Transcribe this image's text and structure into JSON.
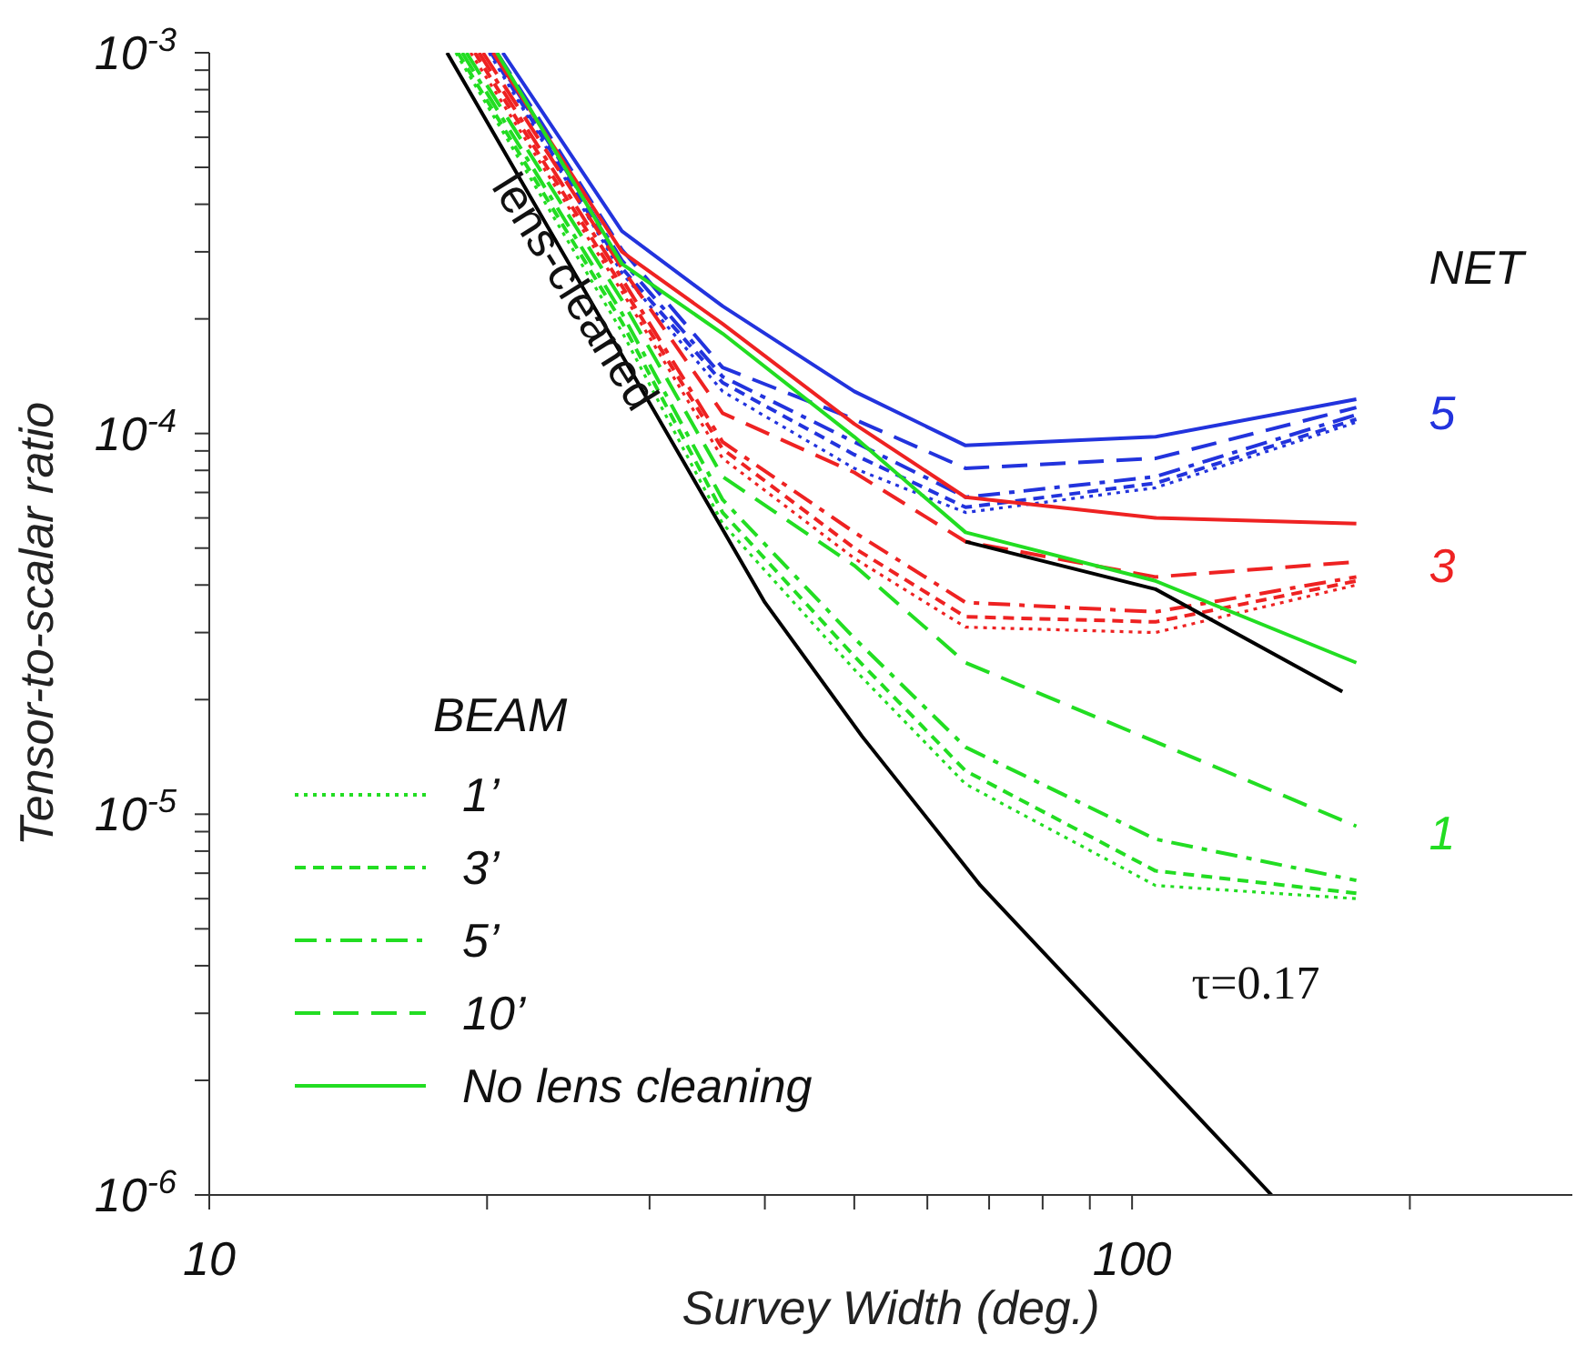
{
  "chart_data": {
    "type": "line",
    "xlabel": "Survey Width (deg.)",
    "ylabel": "Tensor-to-scalar ratio",
    "legend_title": "BEAM",
    "legend": "bottom left",
    "log": "xy",
    "grid": false,
    "marker": "none",
    "xlim": [
      10,
      300
    ],
    "ylim": [
      1e-06,
      0.001
    ],
    "xticks": [
      10,
      {
        "value": 20,
        "label": null
      },
      {
        "value": 30,
        "label": null
      },
      {
        "value": 40,
        "label": null
      },
      {
        "value": 50,
        "label": null
      },
      {
        "value": 60,
        "label": null
      },
      {
        "value": 70,
        "label": null
      },
      {
        "value": 80,
        "label": null
      },
      {
        "value": 90,
        "label": null
      },
      100,
      {
        "value": 200,
        "label": null
      }
    ],
    "yticks": [
      {
        "value": 1e-06,
        "label": "10$^{-6}$"
      },
      {
        "value": 2e-06,
        "label": null
      },
      {
        "value": 3e-06,
        "label": null
      },
      {
        "value": 4e-06,
        "label": null
      },
      {
        "value": 5e-06,
        "label": null
      },
      {
        "value": 6e-06,
        "label": null
      },
      {
        "value": 7e-06,
        "label": null
      },
      {
        "value": 8e-06,
        "label": null
      },
      {
        "value": 9e-06,
        "label": null
      },
      {
        "value": 1e-05,
        "label": "10$^{-5}$"
      },
      {
        "value": 2e-05,
        "label": null
      },
      {
        "value": 3e-05,
        "label": null
      },
      {
        "value": 4e-05,
        "label": null
      },
      {
        "value": 5e-05,
        "label": null
      },
      {
        "value": 6e-05,
        "label": null
      },
      {
        "value": 7e-05,
        "label": null
      },
      {
        "value": 8e-05,
        "label": null
      },
      {
        "value": 9e-05,
        "label": null
      },
      {
        "value": 0.0001,
        "label": "10$^{-4}$"
      },
      {
        "value": 0.0002,
        "label": null
      },
      {
        "value": 0.0003,
        "label": null
      },
      {
        "value": 0.0004,
        "label": null
      },
      {
        "value": 0.0005,
        "label": null
      },
      {
        "value": 0.0006,
        "label": null
      },
      {
        "value": 0.0007,
        "label": null
      },
      {
        "value": 0.0008,
        "label": null
      },
      {
        "value": 0.0009,
        "label": null
      },
      {
        "value": 0.001,
        "label": "10$^{-3}$"
      }
    ],
    "series": [
      {
        "color": "#2233dd",
        "line_style": "solid",
        "x": [
          20.8,
          28,
          36,
          50,
          66,
          106,
          175
        ],
        "values": [
          0.001,
          0.00034,
          0.000216,
          0.000129,
          9.3e-05,
          9.8e-05,
          0.000123
        ]
      },
      {
        "color": "#2233dd",
        "line_style": "longdash",
        "x": [
          20.5,
          28,
          36,
          50,
          66,
          106,
          175
        ],
        "values": [
          0.001,
          0.000304,
          0.000149,
          0.000109,
          8.1e-05,
          8.6e-05,
          0.000117
        ]
      },
      {
        "color": "#2233dd",
        "line_style": "dashdot",
        "x": [
          20.3,
          28,
          36,
          50,
          66,
          106,
          175
        ],
        "values": [
          0.001,
          0.000285,
          0.000141,
          9.5e-05,
          6.8e-05,
          7.7e-05,
          0.000112
        ]
      },
      {
        "color": "#2233dd",
        "line_style": "dashed",
        "x": [
          20.2,
          28,
          36,
          50,
          66,
          106,
          175
        ],
        "values": [
          0.001,
          0.000272,
          0.000136,
          8.8e-05,
          6.4e-05,
          7.4e-05,
          0.000109
        ]
      },
      {
        "color": "#2233dd",
        "line_style": "dotted",
        "x": [
          20.1,
          28,
          36,
          50,
          66,
          106,
          175
        ],
        "values": [
          0.001,
          0.000264,
          0.000129,
          8.1e-05,
          6.2e-05,
          7.2e-05,
          0.000107
        ]
      },
      {
        "color": "#ee2222",
        "line_style": "solid",
        "x": [
          20.3,
          28,
          36,
          50,
          66,
          106,
          175
        ],
        "values": [
          0.001,
          0.0003,
          0.000194,
          0.000106,
          6.8e-05,
          6e-05,
          5.8e-05
        ]
      },
      {
        "color": "#ee2222",
        "line_style": "longdash",
        "x": [
          19.8,
          28,
          36,
          50,
          66,
          106,
          175
        ],
        "values": [
          0.001,
          0.000272,
          0.000113,
          7.9e-05,
          5.2e-05,
          4.2e-05,
          4.6e-05
        ]
      },
      {
        "color": "#ee2222",
        "line_style": "dashdot",
        "x": [
          19.6,
          28,
          36,
          50,
          66,
          106,
          175
        ],
        "values": [
          0.001,
          0.000255,
          9.5e-05,
          5.5e-05,
          3.6e-05,
          3.4e-05,
          4.2e-05
        ]
      },
      {
        "color": "#ee2222",
        "line_style": "dashed",
        "x": [
          19.4,
          28,
          36,
          50,
          66,
          106,
          175
        ],
        "values": [
          0.001,
          0.000244,
          9.1e-05,
          5e-05,
          3.3e-05,
          3.2e-05,
          4.1e-05
        ]
      },
      {
        "color": "#ee2222",
        "line_style": "dotted",
        "x": [
          19.2,
          28,
          36,
          50,
          66,
          106,
          175
        ],
        "values": [
          0.001,
          0.000236,
          8.6e-05,
          4.7e-05,
          3.1e-05,
          3e-05,
          4e-05
        ]
      },
      {
        "color": "#000000",
        "line_style": "solid",
        "x": [
          66,
          106,
          169
        ],
        "values": [
          5.2e-05,
          3.9e-05,
          2.1e-05
        ]
      },
      {
        "name": "No lens cleaning",
        "color": "#22dd22",
        "line_style": "solid",
        "x": [
          20.5,
          28,
          36,
          50,
          66,
          106,
          175
        ],
        "values": [
          0.001,
          0.000279,
          0.000183,
          9.8e-05,
          5.5e-05,
          4.1e-05,
          2.5e-05
        ]
      },
      {
        "name": "10’",
        "color": "#22dd22",
        "line_style": "longdash",
        "x": [
          19.0,
          28,
          36,
          50,
          66,
          106,
          175
        ],
        "values": [
          0.001,
          0.000224,
          7.7e-05,
          4.5e-05,
          2.5e-05,
          1.55e-05,
          9.3e-06
        ]
      },
      {
        "name": "5’",
        "color": "#22dd22",
        "line_style": "dashdot",
        "x": [
          18.8,
          28,
          36,
          50,
          66,
          106,
          175
        ],
        "values": [
          0.001,
          0.000207,
          6.7e-05,
          2.9e-05,
          1.5e-05,
          8.6e-06,
          6.7e-06
        ]
      },
      {
        "name": "3’",
        "color": "#22dd22",
        "line_style": "dashed",
        "x": [
          18.6,
          28,
          36,
          50,
          66,
          106,
          175
        ],
        "values": [
          0.001,
          0.000196,
          6.2e-05,
          2.6e-05,
          1.3e-05,
          7.1e-06,
          6.2e-06
        ]
      },
      {
        "name": "1’",
        "color": "#22dd22",
        "line_style": "dotted",
        "x": [
          18.5,
          28,
          36,
          50,
          66,
          106,
          175
        ],
        "values": [
          0.001,
          0.000185,
          5.8e-05,
          2.4e-05,
          1.2e-05,
          6.5e-06,
          6e-06
        ]
      },
      {
        "name": "lens-cleaned",
        "color": "#000000",
        "line_style": "solid",
        "x": [
          18.1,
          40,
          51,
          68.5,
          141.6
        ],
        "values": [
          0.001,
          3.6e-05,
          1.6e-05,
          6.5e-06,
          1e-06
        ]
      }
    ],
    "annotations": [
      "NET",
      "5",
      "3",
      "1",
      "τ=0.17"
    ]
  }
}
